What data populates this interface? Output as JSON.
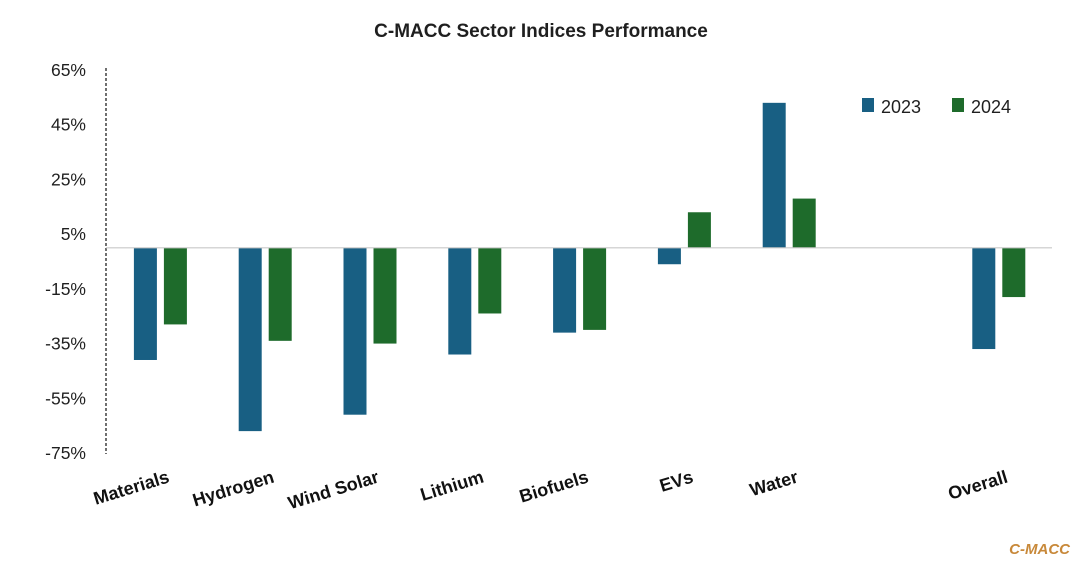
{
  "chart_data": {
    "type": "bar",
    "title": "C-MACC Sector Indices Performance",
    "xlabel": "",
    "ylabel": "",
    "categories": [
      "Materials",
      "Hydrogen",
      "Wind Solar",
      "Lithium",
      "Biofuels",
      "EVs",
      "Water",
      "",
      "Overall"
    ],
    "series": [
      {
        "name": "2023",
        "color": "#185f83",
        "values": [
          -41,
          -67,
          -61,
          -39,
          -31,
          -6,
          53,
          null,
          -37
        ]
      },
      {
        "name": "2024",
        "color": "#1e6b2b",
        "values": [
          -28,
          -34,
          -35,
          -24,
          -30,
          13,
          18,
          null,
          -18
        ]
      }
    ],
    "ylim": [
      -75,
      65
    ],
    "yticks": [
      65,
      45,
      25,
      5,
      -15,
      -35,
      -55,
      -75
    ],
    "ytick_labels": [
      "65%",
      "45%",
      "25%",
      "5%",
      "-15%",
      "-35%",
      "-55%",
      "-75%"
    ],
    "grid": false,
    "legend_position": "top-right"
  },
  "watermark": {
    "text": "C-MACC",
    "color": "#c8893a"
  }
}
